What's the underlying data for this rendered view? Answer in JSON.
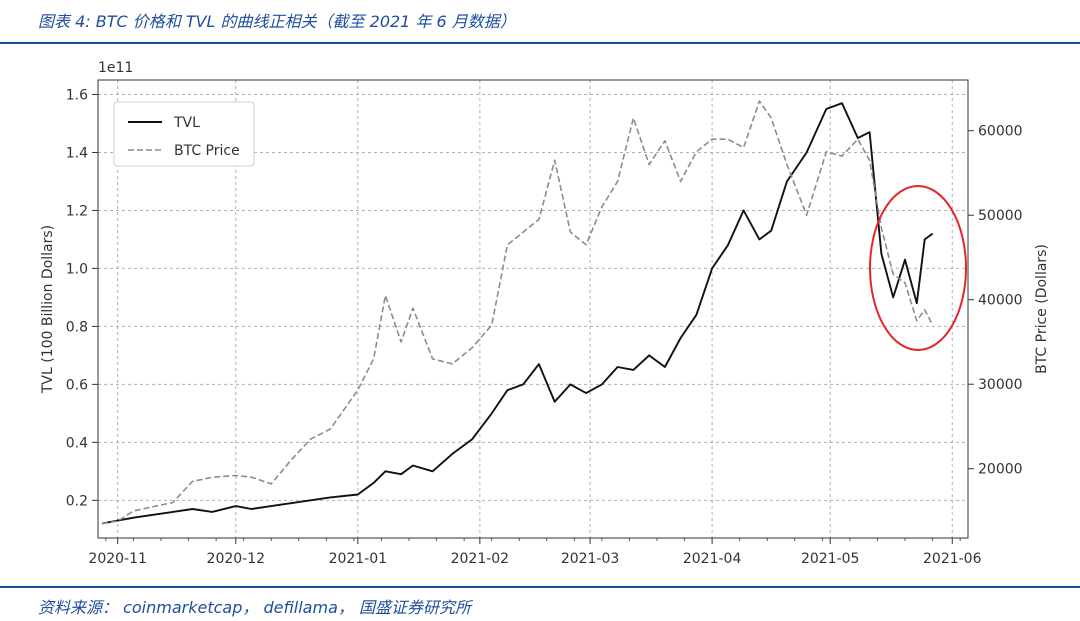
{
  "figure": {
    "title": "图表 4:  BTC 价格和 TVL 的曲线正相关（截至 2021 年 6 月数据）",
    "source": "资料来源： coinmarketcap， defillama， 国盛证券研究所"
  },
  "chart_data": {
    "type": "line",
    "xlabel": "",
    "ylabel": "TVL (100 Billion Dollars)",
    "y2label": "BTC Price (Dollars)",
    "y_offset_text": "1e11",
    "xticks": [
      "2020-11",
      "2020-12",
      "2021-01",
      "2021-02",
      "2021-03",
      "2021-04",
      "2021-05",
      "2021-06"
    ],
    "xrange": [
      "2020-10-27",
      "2021-06-05"
    ],
    "ylim": [
      0.07,
      1.65
    ],
    "yticks": [
      "0.2",
      "0.4",
      "0.6",
      "0.8",
      "1.0",
      "1.2",
      "1.4",
      "1.6"
    ],
    "y2lim": [
      11800,
      66000
    ],
    "y2ticks": [
      "20000",
      "30000",
      "40000",
      "50000",
      "60000"
    ],
    "grid": true,
    "legend_position": "top-left",
    "annotation": "red circle highlighting late-May 2021 decline",
    "colors": {
      "tvl": "#111111",
      "btc": "#8c8c8c",
      "grid": "#b0b0b0",
      "circle": "#e8242b",
      "brand": "#1f4e9c"
    },
    "series": [
      {
        "name": "TVL",
        "axis": "left",
        "style": "solid",
        "x": [
          "2020-10-28",
          "2020-11-01",
          "2020-11-05",
          "2020-11-10",
          "2020-11-15",
          "2020-11-20",
          "2020-11-25",
          "2020-12-01",
          "2020-12-05",
          "2020-12-10",
          "2020-12-15",
          "2020-12-20",
          "2020-12-25",
          "2021-01-01",
          "2021-01-05",
          "2021-01-08",
          "2021-01-12",
          "2021-01-15",
          "2021-01-20",
          "2021-01-25",
          "2021-01-30",
          "2021-02-04",
          "2021-02-08",
          "2021-02-12",
          "2021-02-16",
          "2021-02-20",
          "2021-02-24",
          "2021-02-28",
          "2021-03-04",
          "2021-03-08",
          "2021-03-12",
          "2021-03-16",
          "2021-03-20",
          "2021-03-24",
          "2021-03-28",
          "2021-04-01",
          "2021-04-05",
          "2021-04-09",
          "2021-04-13",
          "2021-04-16",
          "2021-04-20",
          "2021-04-25",
          "2021-04-30",
          "2021-05-04",
          "2021-05-08",
          "2021-05-11",
          "2021-05-14",
          "2021-05-17",
          "2021-05-20",
          "2021-05-23",
          "2021-05-25",
          "2021-05-27"
        ],
        "values": [
          0.12,
          0.13,
          0.14,
          0.15,
          0.16,
          0.17,
          0.16,
          0.18,
          0.17,
          0.18,
          0.19,
          0.2,
          0.21,
          0.22,
          0.26,
          0.3,
          0.29,
          0.32,
          0.3,
          0.36,
          0.41,
          0.5,
          0.58,
          0.6,
          0.67,
          0.54,
          0.6,
          0.57,
          0.6,
          0.66,
          0.65,
          0.7,
          0.66,
          0.76,
          0.84,
          1.0,
          1.08,
          1.2,
          1.1,
          1.13,
          1.3,
          1.4,
          1.55,
          1.57,
          1.45,
          1.47,
          1.05,
          0.9,
          1.03,
          0.88,
          1.1,
          1.12
        ]
      },
      {
        "name": "BTC Price",
        "axis": "right",
        "style": "dashed",
        "x": [
          "2020-10-28",
          "2020-11-01",
          "2020-11-05",
          "2020-11-10",
          "2020-11-15",
          "2020-11-20",
          "2020-11-25",
          "2020-12-01",
          "2020-12-05",
          "2020-12-10",
          "2020-12-15",
          "2020-12-20",
          "2020-12-25",
          "2021-01-01",
          "2021-01-05",
          "2021-01-08",
          "2021-01-12",
          "2021-01-15",
          "2021-01-20",
          "2021-01-25",
          "2021-01-30",
          "2021-02-04",
          "2021-02-08",
          "2021-02-12",
          "2021-02-16",
          "2021-02-20",
          "2021-02-24",
          "2021-02-28",
          "2021-03-04",
          "2021-03-08",
          "2021-03-12",
          "2021-03-16",
          "2021-03-20",
          "2021-03-24",
          "2021-03-28",
          "2021-04-01",
          "2021-04-05",
          "2021-04-09",
          "2021-04-13",
          "2021-04-16",
          "2021-04-20",
          "2021-04-25",
          "2021-04-30",
          "2021-05-04",
          "2021-05-08",
          "2021-05-11",
          "2021-05-14",
          "2021-05-17",
          "2021-05-20",
          "2021-05-23",
          "2021-05-25",
          "2021-05-27"
        ],
        "values": [
          13500,
          13800,
          15000,
          15500,
          16000,
          18500,
          19000,
          19200,
          19000,
          18200,
          21000,
          23500,
          24700,
          29300,
          33000,
          40500,
          35000,
          39000,
          33000,
          32400,
          34300,
          37000,
          46500,
          48000,
          49500,
          56500,
          48000,
          46500,
          51000,
          54000,
          61500,
          56000,
          58800,
          54000,
          57500,
          59000,
          59000,
          58000,
          63500,
          61500,
          56000,
          50000,
          57500,
          57000,
          59000,
          56500,
          48500,
          43000,
          42000,
          37500,
          38800,
          37000
        ]
      }
    ]
  }
}
